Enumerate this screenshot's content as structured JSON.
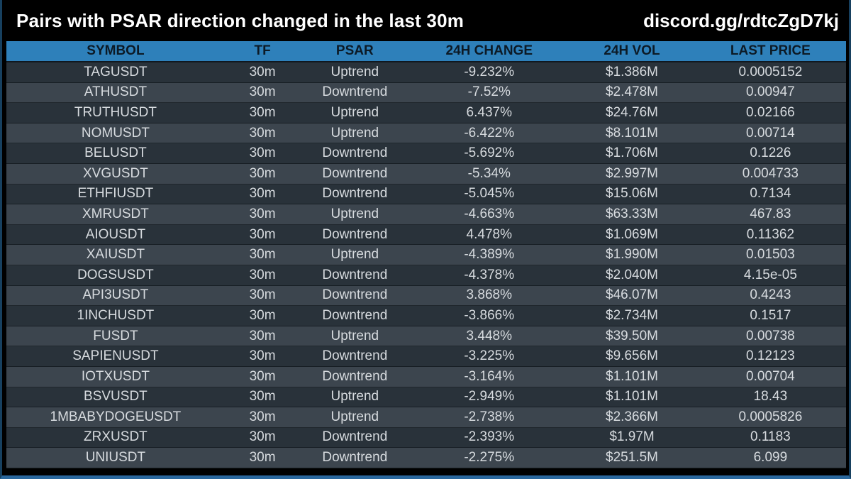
{
  "header": {
    "title": "Pairs with PSAR direction changed in the last 30m",
    "discord": "discord.gg/rdtcZgD7kj"
  },
  "table": {
    "columns": [
      "SYMBOL",
      "TF",
      "PSAR",
      "24H CHANGE",
      "24H VOL",
      "LAST PRICE"
    ],
    "rows": [
      [
        "TAGUSDT",
        "30m",
        "Uptrend",
        "-9.232%",
        "$1.386M",
        "0.0005152"
      ],
      [
        "ATHUSDT",
        "30m",
        "Downtrend",
        "-7.52%",
        "$2.478M",
        "0.00947"
      ],
      [
        "TRUTHUSDT",
        "30m",
        "Uptrend",
        "6.437%",
        "$24.76M",
        "0.02166"
      ],
      [
        "NOMUSDT",
        "30m",
        "Uptrend",
        "-6.422%",
        "$8.101M",
        "0.00714"
      ],
      [
        "BELUSDT",
        "30m",
        "Downtrend",
        "-5.692%",
        "$1.706M",
        "0.1226"
      ],
      [
        "XVGUSDT",
        "30m",
        "Downtrend",
        "-5.34%",
        "$2.997M",
        "0.004733"
      ],
      [
        "ETHFIUSDT",
        "30m",
        "Downtrend",
        "-5.045%",
        "$15.06M",
        "0.7134"
      ],
      [
        "XMRUSDT",
        "30m",
        "Uptrend",
        "-4.663%",
        "$63.33M",
        "467.83"
      ],
      [
        "AIOUSDT",
        "30m",
        "Downtrend",
        "4.478%",
        "$1.069M",
        "0.11362"
      ],
      [
        "XAIUSDT",
        "30m",
        "Uptrend",
        "-4.389%",
        "$1.990M",
        "0.01503"
      ],
      [
        "DOGSUSDT",
        "30m",
        "Downtrend",
        "-4.378%",
        "$2.040M",
        "4.15e-05"
      ],
      [
        "API3USDT",
        "30m",
        "Downtrend",
        "3.868%",
        "$46.07M",
        "0.4243"
      ],
      [
        "1INCHUSDT",
        "30m",
        "Downtrend",
        "-3.866%",
        "$2.734M",
        "0.1517"
      ],
      [
        "FUSDT",
        "30m",
        "Uptrend",
        "3.448%",
        "$39.50M",
        "0.00738"
      ],
      [
        "SAPIENUSDT",
        "30m",
        "Downtrend",
        "-3.225%",
        "$9.656M",
        "0.12123"
      ],
      [
        "IOTXUSDT",
        "30m",
        "Downtrend",
        "-3.164%",
        "$1.101M",
        "0.00704"
      ],
      [
        "BSVUSDT",
        "30m",
        "Uptrend",
        "-2.949%",
        "$1.101M",
        "18.43"
      ],
      [
        "1MBABYDOGEUSDT",
        "30m",
        "Uptrend",
        "-2.738%",
        "$2.366M",
        "0.0005826"
      ],
      [
        "ZRXUSDT",
        "30m",
        "Downtrend",
        "-2.393%",
        "$1.97M",
        "0.1183"
      ],
      [
        "UNIUSDT",
        "30m",
        "Downtrend",
        "-2.275%",
        "$251.5M",
        "6.099"
      ]
    ]
  },
  "colors": {
    "background": "#000000",
    "header_bar": "#2e80ba",
    "header_text": "#0c1a26",
    "row_dark": "#29323a",
    "row_light": "#3c454e",
    "row_text": "#d7dbdf",
    "title_text": "#ffffff",
    "frame_border": "#2a679c"
  },
  "chart_data": {
    "type": "table",
    "title": "Pairs with PSAR direction changed in the last 30m",
    "columns": [
      "SYMBOL",
      "TF",
      "PSAR",
      "24H CHANGE",
      "24H VOL",
      "LAST PRICE"
    ],
    "rows": [
      [
        "TAGUSDT",
        "30m",
        "Uptrend",
        "-9.232%",
        "$1.386M",
        "0.0005152"
      ],
      [
        "ATHUSDT",
        "30m",
        "Downtrend",
        "-7.52%",
        "$2.478M",
        "0.00947"
      ],
      [
        "TRUTHUSDT",
        "30m",
        "Uptrend",
        "6.437%",
        "$24.76M",
        "0.02166"
      ],
      [
        "NOMUSDT",
        "30m",
        "Uptrend",
        "-6.422%",
        "$8.101M",
        "0.00714"
      ],
      [
        "BELUSDT",
        "30m",
        "Downtrend",
        "-5.692%",
        "$1.706M",
        "0.1226"
      ],
      [
        "XVGUSDT",
        "30m",
        "Downtrend",
        "-5.34%",
        "$2.997M",
        "0.004733"
      ],
      [
        "ETHFIUSDT",
        "30m",
        "Downtrend",
        "-5.045%",
        "$15.06M",
        "0.7134"
      ],
      [
        "XMRUSDT",
        "30m",
        "Uptrend",
        "-4.663%",
        "$63.33M",
        "467.83"
      ],
      [
        "AIOUSDT",
        "30m",
        "Downtrend",
        "4.478%",
        "$1.069M",
        "0.11362"
      ],
      [
        "XAIUSDT",
        "30m",
        "Uptrend",
        "-4.389%",
        "$1.990M",
        "0.01503"
      ],
      [
        "DOGSUSDT",
        "30m",
        "Downtrend",
        "-4.378%",
        "$2.040M",
        "4.15e-05"
      ],
      [
        "API3USDT",
        "30m",
        "Downtrend",
        "3.868%",
        "$46.07M",
        "0.4243"
      ],
      [
        "1INCHUSDT",
        "30m",
        "Downtrend",
        "-3.866%",
        "$2.734M",
        "0.1517"
      ],
      [
        "FUSDT",
        "30m",
        "Uptrend",
        "3.448%",
        "$39.50M",
        "0.00738"
      ],
      [
        "SAPIENUSDT",
        "30m",
        "Downtrend",
        "-3.225%",
        "$9.656M",
        "0.12123"
      ],
      [
        "IOTXUSDT",
        "30m",
        "Downtrend",
        "-3.164%",
        "$1.101M",
        "0.00704"
      ],
      [
        "BSVUSDT",
        "30m",
        "Uptrend",
        "-2.949%",
        "$1.101M",
        "18.43"
      ],
      [
        "1MBABYDOGEUSDT",
        "30m",
        "Uptrend",
        "-2.738%",
        "$2.366M",
        "0.0005826"
      ],
      [
        "ZRXUSDT",
        "30m",
        "Downtrend",
        "-2.393%",
        "$1.97M",
        "0.1183"
      ],
      [
        "UNIUSDT",
        "30m",
        "Downtrend",
        "-2.275%",
        "$251.5M",
        "6.099"
      ]
    ]
  }
}
